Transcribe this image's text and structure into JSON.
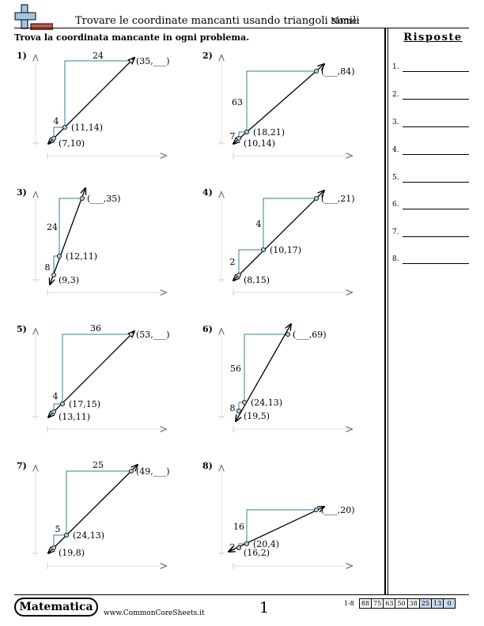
{
  "header": {
    "title": "Trovare le coordinate mancanti usando triangoli simili",
    "name_label": "Nome:",
    "instructions": "Trova la coordinata mancante in ogni problema."
  },
  "answers": {
    "title": "Risposte",
    "items": [
      "1.",
      "2.",
      "3.",
      "4.",
      "5.",
      "6.",
      "7.",
      "8."
    ]
  },
  "problems": [
    {
      "number": "1)",
      "rise_label": "4",
      "run_label": "24",
      "p1_label": "(7,10)",
      "p2_label": "(11,14)",
      "p3_label": "(35,___)"
    },
    {
      "number": "2)",
      "rise_label": "7",
      "run_label": "63",
      "p1_label": "(10,14)",
      "p2_label": "(18,21)",
      "p3_label": "(___,84)"
    },
    {
      "number": "3)",
      "rise_label": "8",
      "run_label": "24",
      "p1_label": "(9,3)",
      "p2_label": "(12,11)",
      "p3_label": "(___,35)"
    },
    {
      "number": "4)",
      "rise_label": "2",
      "run_label": "4",
      "p1_label": "(8,15)",
      "p2_label": "(10,17)",
      "p3_label": "(___,21)"
    },
    {
      "number": "5)",
      "rise_label": "4",
      "run_label": "36",
      "p1_label": "(13,11)",
      "p2_label": "(17,15)",
      "p3_label": "(53,___)"
    },
    {
      "number": "6)",
      "rise_label": "8",
      "run_label": "56",
      "p1_label": "(19,5)",
      "p2_label": "(24,13)",
      "p3_label": "(___,69)"
    },
    {
      "number": "7)",
      "rise_label": "5",
      "run_label": "25",
      "p1_label": "(19,8)",
      "p2_label": "(24,13)",
      "p3_label": "(49,___)"
    },
    {
      "number": "8)",
      "rise_label": "2",
      "run_label": "16",
      "p1_label": "(16,2)",
      "p2_label": "(20,4)",
      "p3_label": "(___,20)"
    }
  ],
  "footer": {
    "brand": "Matematica",
    "site": "www.CommonCoreSheets.it",
    "page_number": "1",
    "score_label": "1-8",
    "scores": [
      "88",
      "75",
      "63",
      "50",
      "38",
      "25",
      "13",
      "0"
    ]
  },
  "colors": {
    "triangle_stroke": "#3a7f96",
    "axis_gray": "#cccccc",
    "point_fill": "#a9cfe6",
    "logo_blue": "#9ec6e3",
    "logo_red": "#c05a4e",
    "score_highlight": "#c9d9ee"
  }
}
